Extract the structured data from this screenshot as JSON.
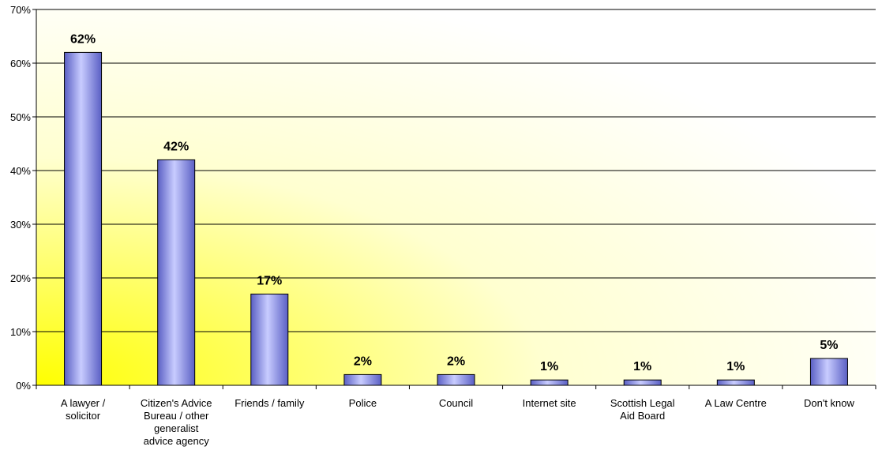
{
  "chart_data": {
    "type": "bar",
    "categories": [
      [
        "A lawyer /",
        "solicitor"
      ],
      [
        "Citizen's Advice",
        "Bureau / other",
        "generalist",
        "advice agency"
      ],
      [
        "Friends / family"
      ],
      [
        "Police"
      ],
      [
        "Council"
      ],
      [
        "Internet site"
      ],
      [
        "Scottish Legal",
        "Aid Board"
      ],
      [
        "A Law Centre"
      ],
      [
        "Don't know"
      ]
    ],
    "values": [
      62,
      42,
      17,
      2,
      2,
      1,
      1,
      1,
      5
    ],
    "value_labels": [
      "62%",
      "42%",
      "17%",
      "2%",
      "2%",
      "1%",
      "1%",
      "1%",
      "5%"
    ],
    "y_ticks": [
      0,
      10,
      20,
      30,
      40,
      50,
      60,
      70
    ],
    "y_tick_labels": [
      "0%",
      "10%",
      "20%",
      "30%",
      "40%",
      "50%",
      "60%",
      "70%"
    ],
    "ylim": [
      0,
      70
    ],
    "grid": true,
    "legend": "none",
    "colors": {
      "bar_light": "#c8ccff",
      "bar_mid": "#8f93ea",
      "bar_dark": "#5a5fc4",
      "bar_stroke": "#000000",
      "bg_yellow": "#ffff00",
      "bg_white": "#ffffff",
      "gridline": "#000000"
    }
  }
}
